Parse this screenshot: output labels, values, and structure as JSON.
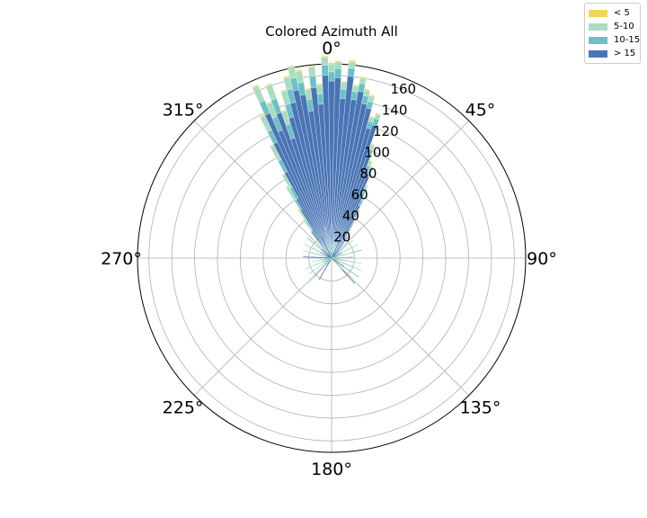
{
  "chart_data": {
    "type": "polar-bar",
    "title": "Colored Azimuth All",
    "theta_zero": "N",
    "theta_direction": "clockwise",
    "theta_tick_labels": [
      "0°",
      "45°",
      "90°",
      "135°",
      "180°",
      "225°",
      "270°",
      "315°"
    ],
    "r_ticks": [
      20,
      40,
      60,
      80,
      100,
      120,
      140,
      160
    ],
    "r_tick_labels": [
      "20",
      "40",
      "60",
      "80",
      "100",
      "120",
      "140",
      "160"
    ],
    "rlim": [
      0,
      170
    ],
    "grid": true,
    "legend": "upper-right",
    "bin_width_deg": 2,
    "bins_center_deg": [
      -40,
      -38,
      -36,
      -34,
      -32,
      -30,
      -28,
      -26,
      -24,
      -22,
      -20,
      -18,
      -16,
      -14,
      -12,
      -10,
      -8,
      -6,
      -4,
      -2,
      0,
      2,
      4,
      6,
      8,
      10,
      12,
      14,
      16,
      18,
      20,
      22,
      24,
      26,
      28,
      30,
      32,
      34,
      36,
      38,
      40
    ],
    "series": [
      {
        "name": "> 15",
        "color": "#4a74b4",
        "values": [
          5,
          10,
          22,
          30,
          50,
          60,
          85,
          112,
          138,
          120,
          135,
          110,
          128,
          140,
          150,
          145,
          130,
          150,
          135,
          160,
          155,
          158,
          140,
          160,
          140,
          148,
          138,
          135,
          118,
          122,
          95,
          82,
          78,
          62,
          52,
          40,
          30,
          20,
          12,
          8,
          5
        ]
      },
      {
        "name": "10-15",
        "color": "#6cc0c8",
        "values": [
          6,
          7,
          8,
          9,
          10,
          11,
          12,
          12,
          12,
          13,
          13,
          13,
          12,
          12,
          11,
          11,
          10,
          10,
          9,
          9,
          8,
          8,
          8,
          7,
          7,
          7,
          7,
          6,
          6,
          6,
          6,
          5,
          5,
          5,
          5,
          5,
          4,
          4,
          4,
          4,
          4
        ]
      },
      {
        "name": "5-10",
        "color": "#a9ddc0",
        "values": [
          9,
          10,
          11,
          12,
          13,
          13,
          14,
          14,
          14,
          13,
          13,
          12,
          12,
          11,
          10,
          10,
          9,
          8,
          8,
          7,
          7,
          6,
          6,
          6,
          5,
          5,
          5,
          5,
          4,
          4,
          4,
          4,
          4,
          3,
          3,
          3,
          3,
          3,
          3,
          3,
          3
        ]
      },
      {
        "name": "< 5",
        "color": "#f0d55a",
        "values": [
          1,
          1,
          1,
          1,
          1,
          1,
          1,
          1,
          1,
          1,
          1,
          1,
          1,
          1,
          1,
          1,
          1,
          1,
          1,
          1,
          1,
          1,
          1,
          1,
          1,
          1,
          1,
          1,
          1,
          1,
          1,
          1,
          1,
          1,
          1,
          1,
          1,
          1,
          1,
          1,
          1
        ]
      }
    ],
    "legend_entries": [
      {
        "label": "< 5",
        "color": "#f0d55a"
      },
      {
        "label": "5-10",
        "color": "#a9ddc0"
      },
      {
        "label": "10-15",
        "color": "#6cc0c8"
      },
      {
        "label": "> 15",
        "color": "#4a74b4"
      }
    ]
  }
}
